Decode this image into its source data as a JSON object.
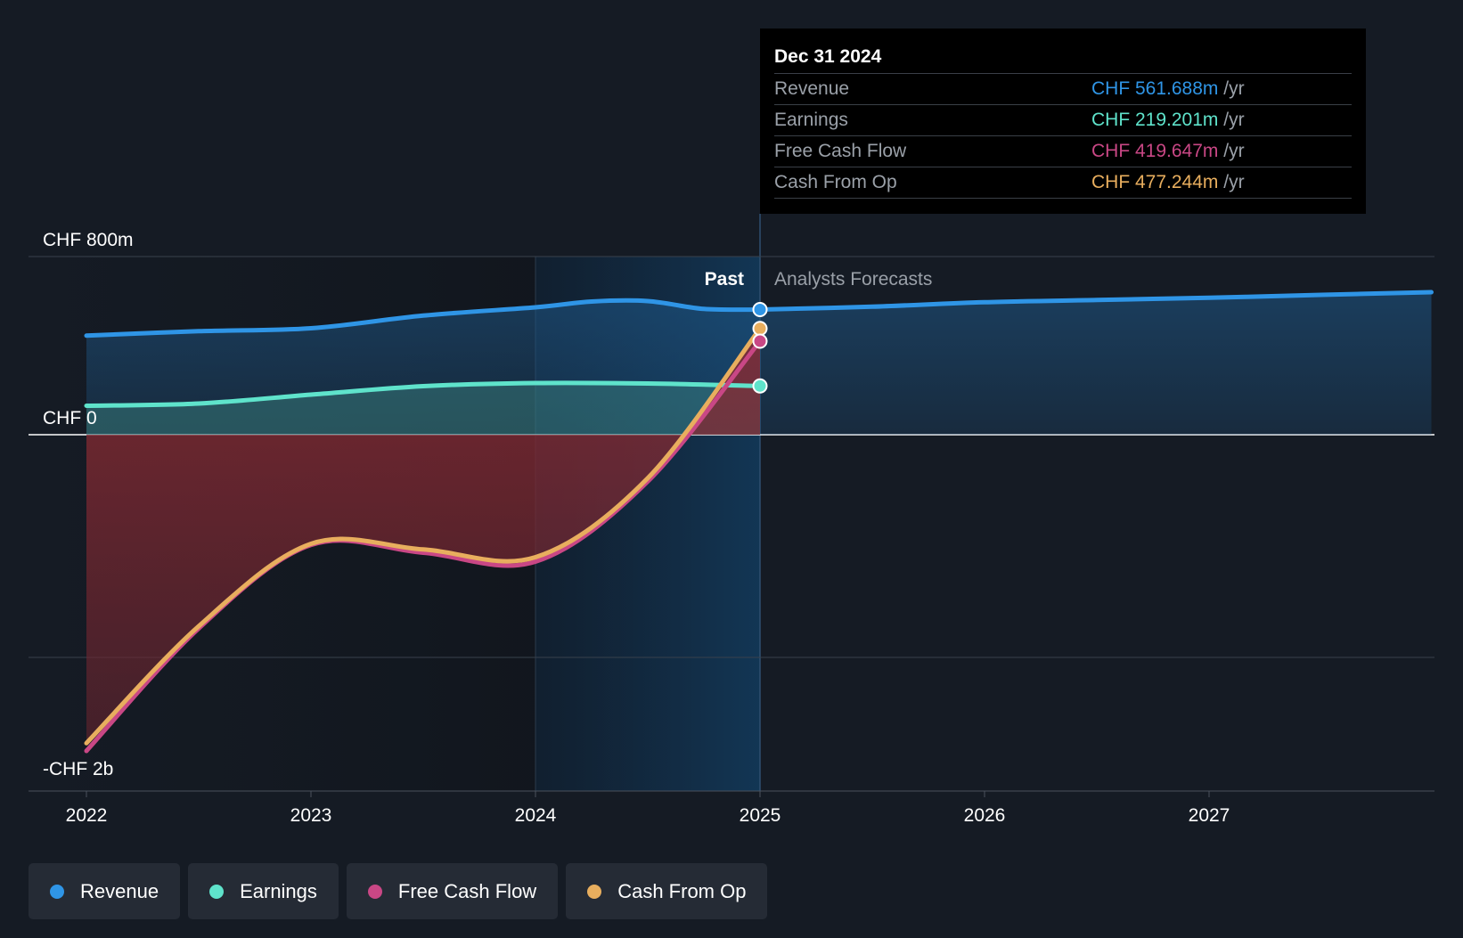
{
  "chart_data": {
    "type": "area",
    "title": "",
    "xlabel": "",
    "ylabel": "",
    "x_ticks": [
      "2022",
      "2023",
      "2024",
      "2025",
      "2026",
      "2027"
    ],
    "y_ticks": [
      {
        "value": 800,
        "label": "CHF 800m"
      },
      {
        "value": 0,
        "label": "CHF 0"
      },
      {
        "value": -1600,
        "label": "-CHF 2b"
      }
    ],
    "ylim": [
      -1600,
      800
    ],
    "xlim": [
      2021.75,
      2027.99
    ],
    "section_labels": {
      "past": "Past",
      "forecast": "Analysts Forecasts"
    },
    "series": [
      {
        "name": "Revenue",
        "color": "#2f95e6",
        "x": [
          2022.0,
          2022.5,
          2023.0,
          2023.5,
          2024.0,
          2024.25,
          2024.5,
          2024.75,
          2025.0
        ],
        "values": [
          445,
          465,
          478,
          535,
          572,
          598,
          600,
          565,
          562
        ],
        "forecast_x": [
          2025.0,
          2025.5,
          2026.0,
          2026.5,
          2027.0,
          2027.5,
          2027.99
        ],
        "forecast_values": [
          562,
          575,
          595,
          605,
          615,
          628,
          640
        ]
      },
      {
        "name": "Earnings",
        "color": "#5fe3cb",
        "x": [
          2022.0,
          2022.5,
          2023.0,
          2023.5,
          2024.0,
          2024.5,
          2025.0
        ],
        "values": [
          130,
          140,
          180,
          218,
          232,
          230,
          219
        ]
      },
      {
        "name": "Free Cash Flow",
        "color": "#c94785",
        "x": [
          2022.0,
          2022.5,
          2023.0,
          2023.5,
          2024.0,
          2024.5,
          2025.0
        ],
        "values": [
          -1420,
          -870,
          -495,
          -530,
          -570,
          -210,
          420
        ]
      },
      {
        "name": "Cash From Op",
        "color": "#e8ae5e",
        "x": [
          2022.0,
          2022.5,
          2023.0,
          2023.5,
          2024.0,
          2024.5,
          2025.0
        ],
        "values": [
          -1385,
          -860,
          -490,
          -515,
          -550,
          -195,
          477
        ]
      }
    ],
    "tooltip": {
      "date": "Dec 31 2024",
      "unit": "/yr",
      "rows": [
        {
          "label": "Revenue",
          "value": "CHF 561.688m",
          "color": "#2f95e6"
        },
        {
          "label": "Earnings",
          "value": "CHF 219.201m",
          "color": "#5fe3cb"
        },
        {
          "label": "Free Cash Flow",
          "value": "CHF 419.647m",
          "color": "#c94785"
        },
        {
          "label": "Cash From Op",
          "value": "CHF 477.244m",
          "color": "#e8ae5e"
        }
      ]
    },
    "legend": [
      {
        "label": "Revenue",
        "color": "#2f95e6"
      },
      {
        "label": "Earnings",
        "color": "#5fe3cb"
      },
      {
        "label": "Free Cash Flow",
        "color": "#c94785"
      },
      {
        "label": "Cash From Op",
        "color": "#e8ae5e"
      }
    ]
  }
}
